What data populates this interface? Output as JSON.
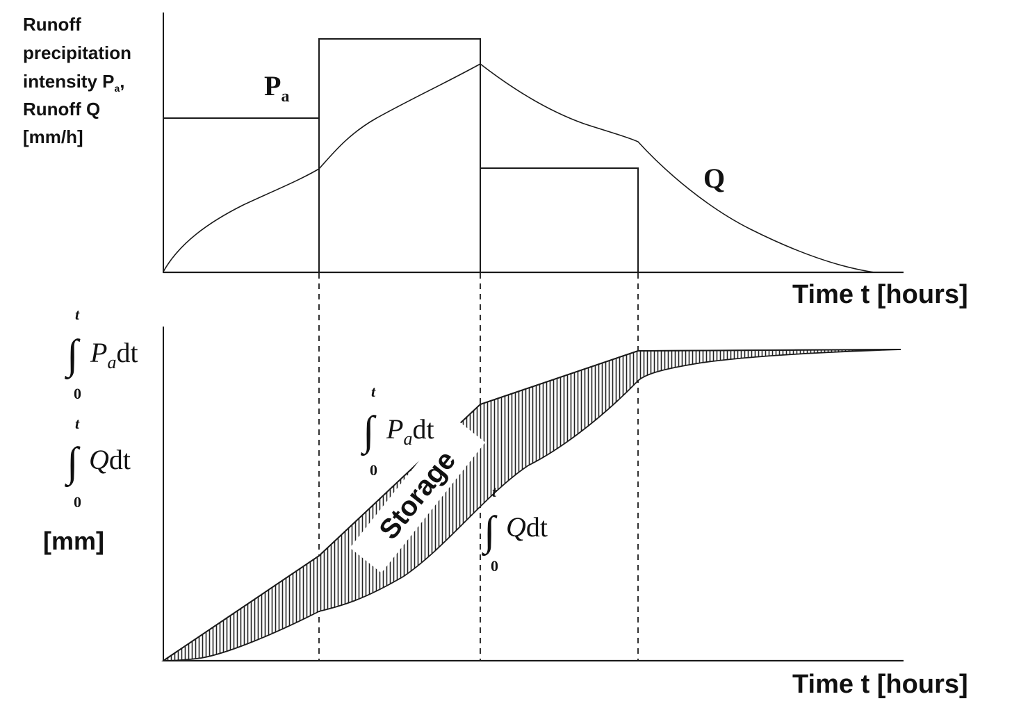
{
  "top_chart": {
    "y_label_lines": [
      "Runoff",
      "precipitation",
      "intensity P",
      "Runoff Q",
      "[mm/h]"
    ],
    "y_label_subscript": "a",
    "y_label_comma": ",",
    "x_label": "Time t [hours]",
    "series_P_label": "P",
    "series_P_subscript": "a",
    "series_Q_label": "Q"
  },
  "bottom_chart": {
    "x_label": "Time t [hours]",
    "y_unit": "[mm]",
    "integral_upper": "t",
    "integral_lower": "0",
    "integrand_P": "P",
    "integrand_P_sub": "a",
    "integrand_Q": "Q",
    "dt": "dt",
    "storage_label": "Storage"
  },
  "colors": {
    "line": "#1a1a1a",
    "hatch": "#222222",
    "background": "#ffffff"
  }
}
